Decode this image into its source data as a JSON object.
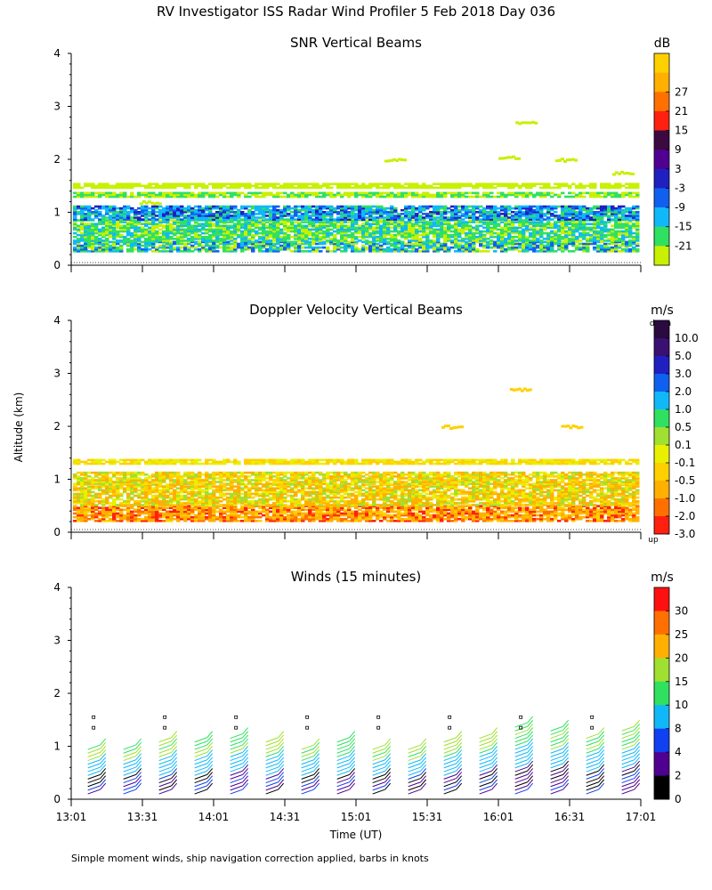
{
  "title": "RV Investigator ISS Radar Wind Profiler   5 Feb 2018 Day 036",
  "footnote": "Simple moment winds, ship navigation correction applied, barbs in knots",
  "y_label": "Altitude (km)",
  "x_label": "Time (UT)",
  "x_ticks": [
    "13:01",
    "13:31",
    "14:01",
    "14:31",
    "15:01",
    "15:31",
    "16:01",
    "16:31",
    "17:01"
  ],
  "y_ticks": [
    "0",
    "1",
    "2",
    "3",
    "4"
  ],
  "panels": [
    {
      "title": "SNR Vertical Beams",
      "unit": "dB",
      "colorbar": [
        "-21",
        "-15",
        "-9",
        "-3",
        "3",
        "9",
        "15",
        "21",
        "27"
      ],
      "colors": [
        "#c8f000",
        "#30e060",
        "#10b8f8",
        "#1060f0",
        "#2020c0",
        "#500090",
        "#3a0a40",
        "#ff2010",
        "#ff7000",
        "#ffb000",
        "#ffd000"
      ]
    },
    {
      "title": "Doppler Velocity Vertical Beams",
      "unit": "m/s",
      "cb_top": "down",
      "cb_bottom": "up",
      "colorbar": [
        "10.0",
        "5.0",
        "3.0",
        "2.0",
        "1.0",
        "0.5",
        "0.1",
        "-0.1",
        "-0.5",
        "-1.0",
        "-2.0",
        "-3.0"
      ],
      "colors": [
        "#2a0a40",
        "#3a1070",
        "#2020c0",
        "#1060f0",
        "#10b8f8",
        "#30e060",
        "#a0e030",
        "#e8f000",
        "#ffd000",
        "#ffb000",
        "#ff7000",
        "#ff2010"
      ]
    },
    {
      "title": "Winds (15 minutes)",
      "unit": "m/s",
      "colorbar": [
        "30",
        "25",
        "20",
        "15",
        "10",
        "8",
        "4",
        "2",
        "0"
      ],
      "colors": [
        "#ff1010",
        "#ff7000",
        "#ffb000",
        "#a0e030",
        "#30e060",
        "#10b8f8",
        "#1040f0",
        "#500090",
        "#000000"
      ]
    }
  ],
  "chart_data": [
    {
      "type": "heatmap",
      "title": "SNR Vertical Beams",
      "xlabel": "",
      "ylabel": "Altitude (km)",
      "x_range": [
        "13:01",
        "17:01"
      ],
      "ylim": [
        0,
        4
      ],
      "colorbar_unit": "dB",
      "colorbar_ticks": [
        -21,
        -15,
        -9,
        -3,
        3,
        9,
        15,
        21,
        27
      ]
    },
    {
      "type": "heatmap",
      "title": "Doppler Velocity Vertical Beams",
      "xlabel": "",
      "ylabel": "Altitude (km)",
      "x_range": [
        "13:01",
        "17:01"
      ],
      "ylim": [
        0,
        4
      ],
      "colorbar_unit": "m/s",
      "colorbar_ticks": [
        10.0,
        5.0,
        3.0,
        2.0,
        1.0,
        0.5,
        0.1,
        -0.1,
        -0.5,
        -1.0,
        -2.0,
        -3.0
      ]
    },
    {
      "type": "scatter",
      "title": "Winds (15 minutes)",
      "xlabel": "Time (UT)",
      "ylabel": "Altitude (km)",
      "x_range": [
        "13:01",
        "17:01"
      ],
      "ylim": [
        0,
        4
      ],
      "colorbar_unit": "m/s",
      "colorbar_ticks": [
        30,
        25,
        20,
        15,
        10,
        8,
        4,
        2,
        0
      ],
      "barb_times": [
        "13:08",
        "13:23",
        "13:38",
        "13:53",
        "14:08",
        "14:23",
        "14:38",
        "14:53",
        "15:08",
        "15:23",
        "15:38",
        "15:53",
        "16:08",
        "16:23",
        "16:38",
        "16:53"
      ],
      "barb_top_km": [
        1.0,
        1.0,
        1.1,
        1.1,
        1.2,
        1.1,
        1.0,
        1.1,
        1.0,
        1.0,
        1.1,
        1.2,
        1.4,
        1.3,
        1.2,
        1.3
      ]
    }
  ]
}
